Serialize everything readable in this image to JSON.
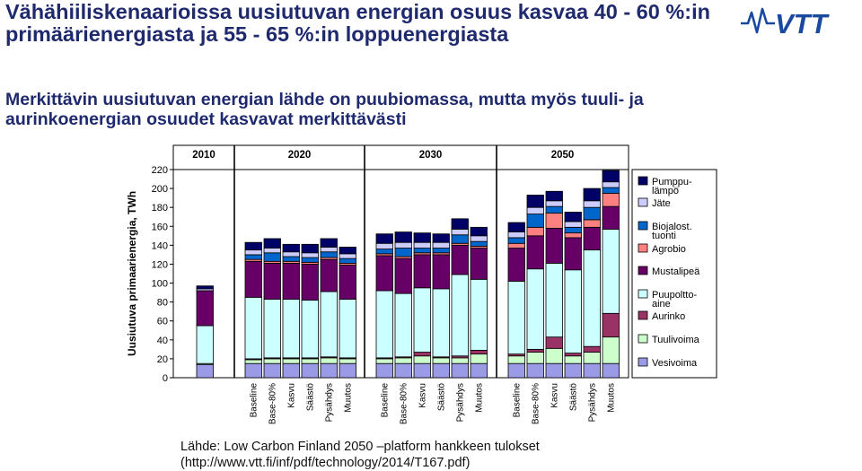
{
  "title": "Vähähiiliskenaarioissa uusiutuvan energian osuus kasvaa 40 - 60 %:in primäärienergiasta ja 55 - 65 %:in loppuenergiasta",
  "subtitle": "Merkittävin uusiutuvan energian lähde on puubiomassa, mutta myös tuuli- ja aurinkoenergian osuudet kasvavat merkittävästi",
  "logo_text": "VTT",
  "source_line1": "Lähde: Low Carbon Finland 2050 –platform hankkeen tulokset",
  "source_line2": "(http://www.vtt.fi/inf/pdf/technology/2014/T167.pdf)",
  "chart_data": {
    "type": "bar",
    "stacked": true,
    "ylabel": "Uusiutuva primaarienergia, TWh",
    "ylim": [
      0,
      220
    ],
    "yticks": [
      0,
      20,
      40,
      60,
      80,
      100,
      120,
      140,
      160,
      180,
      200,
      220
    ],
    "groups": [
      {
        "label": "2010",
        "categories": [
          ""
        ]
      },
      {
        "label": "2020",
        "categories": [
          "Baseline",
          "Base-80%",
          "Kasvu",
          "Säästö",
          "Pysähdys",
          "Muutos"
        ]
      },
      {
        "label": "2030",
        "categories": [
          "Baseline",
          "Base-80%",
          "Kasvu",
          "Säästö",
          "Pysähdys",
          "Muutos"
        ]
      },
      {
        "label": "2050",
        "categories": [
          "Baseline",
          "Base-80%",
          "Kasvu",
          "Säästö",
          "Pysähdys",
          "Muutos"
        ]
      }
    ],
    "legend_position": "right",
    "series": [
      {
        "name": "Vesivoima",
        "color": "#9a9ae6",
        "values": [
          14,
          15,
          15,
          15,
          15,
          15,
          15,
          15,
          15,
          15,
          15,
          15,
          15,
          15,
          15,
          15,
          15,
          15,
          15
        ]
      },
      {
        "name": "Tuulivoima",
        "color": "#ccffcc",
        "values": [
          1,
          4,
          5,
          5,
          5,
          6,
          5,
          5,
          6,
          8,
          6,
          6,
          10,
          8,
          12,
          16,
          8,
          12,
          28
        ]
      },
      {
        "name": "Aurinko",
        "color": "#993366",
        "values": [
          0,
          1,
          1,
          1,
          1,
          1,
          1,
          1,
          1,
          4,
          1,
          2,
          4,
          2,
          3,
          12,
          3,
          6,
          25
        ]
      },
      {
        "name": "Puupolttoaine",
        "color": "#ccffff",
        "values": [
          40,
          65,
          62,
          62,
          61,
          69,
          62,
          71,
          67,
          68,
          72,
          86,
          75,
          77,
          85,
          78,
          88,
          102,
          89
        ]
      },
      {
        "name": "Mustalipeä",
        "color": "#660066",
        "values": [
          37,
          38,
          38,
          38,
          38,
          34,
          36,
          37,
          37,
          35,
          36,
          31,
          33,
          35,
          35,
          37,
          34,
          24,
          24
        ]
      },
      {
        "name": "Agrobio",
        "color": "#ff8080",
        "values": [
          0,
          2,
          2,
          2,
          2,
          2,
          2,
          2,
          2,
          2,
          2,
          2,
          2,
          5,
          9,
          16,
          5,
          8,
          14
        ]
      },
      {
        "name": "Biojalost. tuonti",
        "color": "#0066cc",
        "values": [
          0,
          5,
          9,
          5,
          5,
          6,
          5,
          5,
          9,
          5,
          5,
          9,
          5,
          6,
          14,
          7,
          6,
          13,
          6
        ]
      },
      {
        "name": "Jäte",
        "color": "#ccccff",
        "values": [
          2,
          5,
          5,
          5,
          5,
          5,
          5,
          6,
          6,
          6,
          6,
          6,
          6,
          6,
          7,
          6,
          6,
          7,
          6
        ]
      },
      {
        "name": "Pumppu-lämpö",
        "color": "#000066",
        "values": [
          3,
          8,
          10,
          8,
          9,
          9,
          7,
          10,
          11,
          10,
          9,
          11,
          9,
          10,
          13,
          10,
          10,
          13,
          12
        ]
      }
    ]
  }
}
